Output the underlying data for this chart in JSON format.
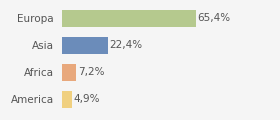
{
  "categories": [
    "Europa",
    "Asia",
    "Africa",
    "America"
  ],
  "values": [
    65.4,
    22.4,
    7.2,
    4.9
  ],
  "labels": [
    "65,4%",
    "22,4%",
    "7,2%",
    "4,9%"
  ],
  "bar_colors": [
    "#b5c98e",
    "#6b8cba",
    "#e8a87c",
    "#f0d080"
  ],
  "background_color": "#f5f5f5",
  "figsize": [
    2.8,
    1.2
  ],
  "dpi": 100,
  "xlim": [
    0,
    90
  ],
  "bar_height": 0.62,
  "label_fontsize": 7.5,
  "ytick_fontsize": 7.5
}
